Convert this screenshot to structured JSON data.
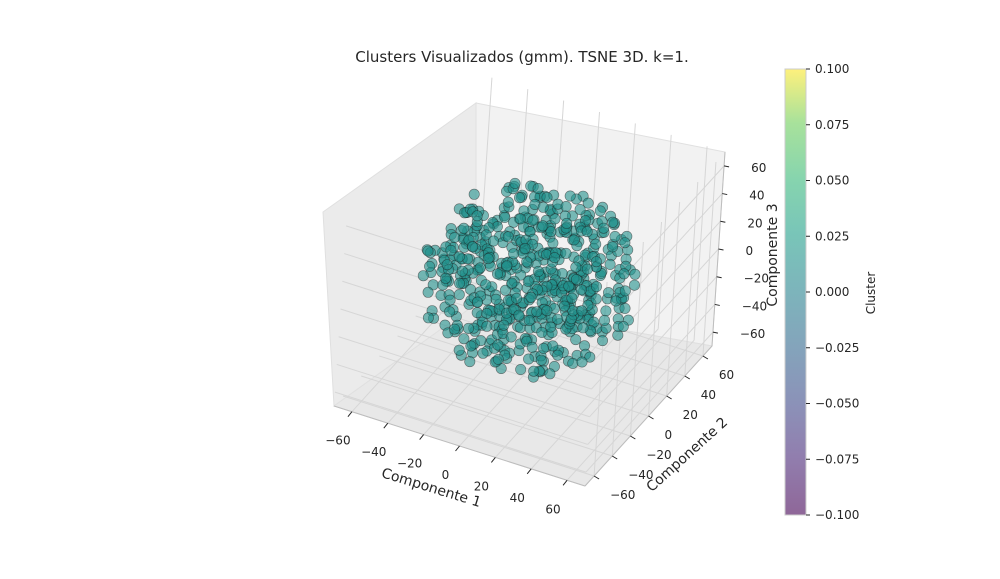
{
  "chart_data": {
    "type": "scatter",
    "projection": "3d",
    "title": "Clusters Visualizados (gmm). TSNE 3D. k=1.",
    "xlabel": "Componente 1",
    "ylabel": "Componente 2",
    "zlabel": "Componente 3",
    "x_ticks": [
      "−60",
      "−40",
      "−20",
      "0",
      "20",
      "40",
      "60"
    ],
    "y_ticks": [
      "−60",
      "−40",
      "−20",
      "0",
      "20",
      "40",
      "60"
    ],
    "z_ticks": [
      "−60",
      "−40",
      "−20",
      "0",
      "20",
      "40",
      "60"
    ],
    "xlim": [
      -70,
      70
    ],
    "ylim": [
      -70,
      70
    ],
    "zlim": [
      -70,
      70
    ],
    "grid": true,
    "marker_color": "#21918c",
    "marker_edge_color": "#1a1a1a",
    "marker_alpha": 0.6,
    "series": [
      {
        "cluster": 0,
        "n_points": 600,
        "distribution": "roughly uniform filled sphere centered at origin, radius about 55 in each component"
      }
    ],
    "colorbar": {
      "label": "Cluster",
      "colormap": "viridis",
      "ticks": [
        "0.100",
        "0.075",
        "0.050",
        "0.025",
        "0.000",
        "−0.025",
        "−0.050",
        "−0.075",
        "−0.100"
      ],
      "range": [
        -0.1,
        0.1
      ]
    }
  }
}
